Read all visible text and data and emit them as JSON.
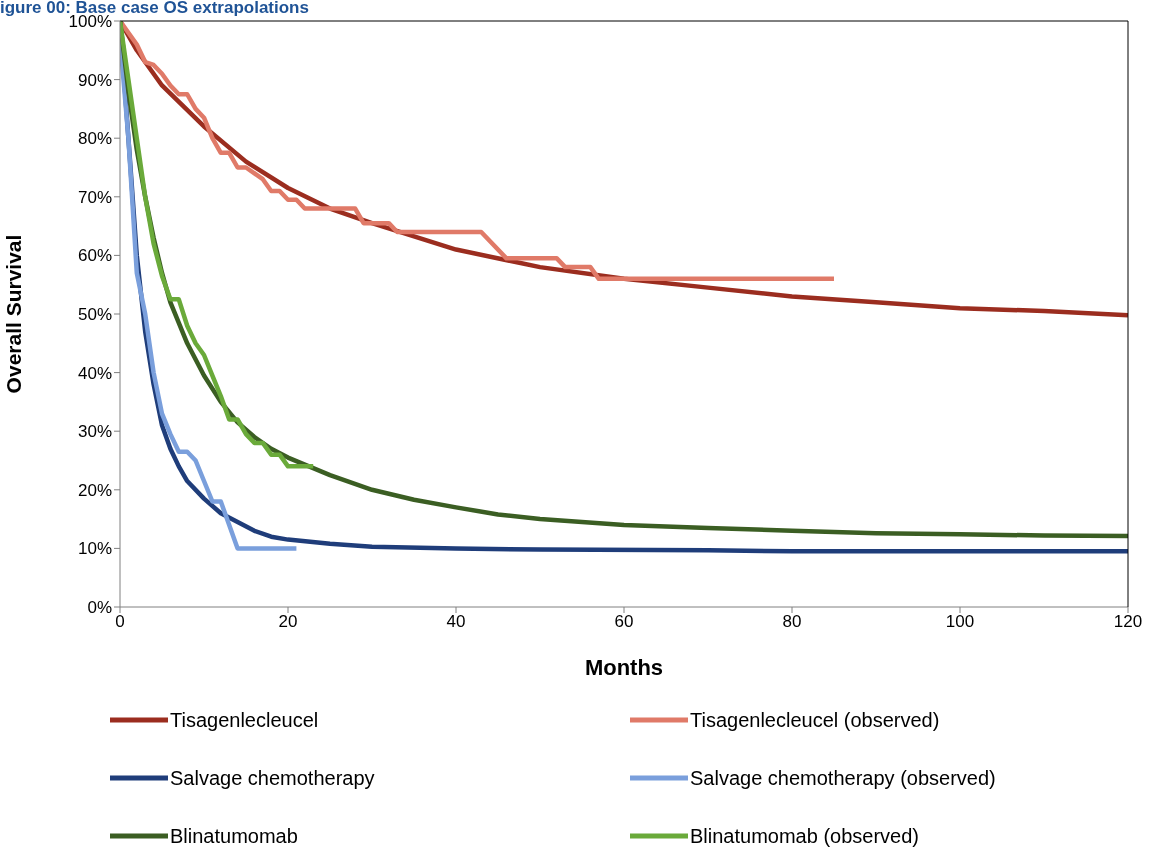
{
  "chart_data": {
    "type": "line",
    "title": "igure 00: Base case OS extrapolations",
    "xlabel": "Months",
    "ylabel": "Overall Survival",
    "xlim": [
      0,
      120
    ],
    "xticks": [
      0,
      20,
      40,
      60,
      80,
      100,
      120
    ],
    "ylim": [
      0,
      100
    ],
    "yticks": [
      {
        "value": 0,
        "label": "0%"
      },
      {
        "value": 10,
        "label": "10%"
      },
      {
        "value": 20,
        "label": "20%"
      },
      {
        "value": 30,
        "label": "30%"
      },
      {
        "value": 40,
        "label": "40%"
      },
      {
        "value": 50,
        "label": "50%"
      },
      {
        "value": 60,
        "label": "60%"
      },
      {
        "value": 70,
        "label": "70%"
      },
      {
        "value": 80,
        "label": "80%"
      },
      {
        "value": 90,
        "label": "90%"
      },
      {
        "value": 100,
        "label": "100%"
      }
    ],
    "grid": false,
    "legend": "bottom",
    "marker": "none",
    "line_style": "solid",
    "series": [
      {
        "name": "Tisagenlecleucel",
        "color": "#9b2d1f",
        "x": [
          0,
          2,
          5,
          10,
          15,
          20,
          25,
          30,
          40,
          50,
          60,
          70,
          80,
          90,
          100,
          110,
          120
        ],
        "values": [
          100,
          95,
          89,
          82,
          76,
          71.5,
          68,
          65.5,
          61,
          58,
          56,
          54.5,
          53,
          52,
          51,
          50.5,
          49.8
        ]
      },
      {
        "name": "Tisagenlecleucel (observed)",
        "color": "#e07a68",
        "x": [
          0,
          1,
          2,
          3,
          4,
          5,
          6,
          7,
          8,
          9,
          10,
          11,
          12,
          13,
          14,
          15,
          17,
          18,
          19,
          20,
          21,
          22,
          28,
          29,
          32,
          33,
          43,
          46,
          52,
          53,
          56,
          57,
          85
        ],
        "values": [
          100,
          98,
          96,
          93,
          92.5,
          91,
          89,
          87.5,
          87.5,
          85,
          83.5,
          80,
          77.5,
          77.5,
          75,
          75,
          73,
          71,
          71,
          69.5,
          69.5,
          68,
          68,
          65.5,
          65.5,
          64,
          64,
          59.5,
          59.5,
          58,
          58,
          56,
          56
        ]
      },
      {
        "name": "Salvage chemotherapy",
        "color": "#1f3d7a",
        "x": [
          0,
          1,
          2,
          3,
          4,
          5,
          6,
          7,
          8,
          10,
          12,
          14,
          16,
          18,
          20,
          25,
          30,
          40,
          50,
          70,
          80,
          120
        ],
        "values": [
          100,
          80,
          60,
          47,
          38,
          31,
          27,
          24,
          21.5,
          18.5,
          16,
          14.5,
          13,
          12,
          11.5,
          10.8,
          10.3,
          10,
          9.8,
          9.7,
          9.5,
          9.5
        ]
      },
      {
        "name": "Salvage chemotherapy (observed)",
        "color": "#7a9fdc",
        "x": [
          0,
          1,
          2,
          3,
          4,
          5,
          6,
          7,
          8,
          9,
          10,
          11,
          12,
          13,
          14,
          21
        ],
        "values": [
          97,
          80,
          57,
          50,
          40,
          33,
          29.5,
          26.5,
          26.5,
          25,
          21.5,
          18,
          18,
          14,
          10,
          10
        ]
      },
      {
        "name": "Blinatumomab",
        "color": "#3b5e23",
        "x": [
          0,
          1,
          2,
          3,
          4,
          5,
          6,
          8,
          10,
          12,
          14,
          16,
          18,
          20,
          25,
          30,
          35,
          40,
          45,
          50,
          60,
          70,
          80,
          90,
          100,
          110,
          120
        ],
        "values": [
          100,
          88,
          78,
          70,
          63,
          57,
          52,
          45,
          39.5,
          35,
          31.5,
          29,
          27,
          25.5,
          22.5,
          20,
          18.3,
          17,
          15.8,
          15,
          14,
          13.5,
          13,
          12.6,
          12.4,
          12.2,
          12.1
        ]
      },
      {
        "name": "Blinatumomab (observed)",
        "color": "#6aaa3a",
        "x": [
          0,
          1,
          2,
          3,
          4,
          5,
          6,
          7,
          8,
          9,
          10,
          11,
          12,
          13,
          14,
          15,
          16,
          17,
          18,
          19,
          20,
          23
        ],
        "values": [
          100,
          90,
          80,
          70,
          62,
          56.5,
          52.5,
          52.5,
          48,
          45,
          43,
          39.5,
          36,
          32,
          32,
          29.5,
          28,
          28,
          26,
          26,
          24,
          24
        ]
      }
    ]
  }
}
